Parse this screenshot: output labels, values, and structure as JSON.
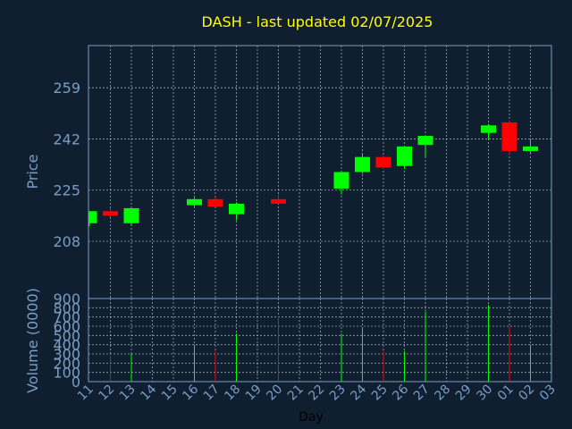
{
  "chart_data": {
    "type": "candlestick",
    "title": "DASH - last updated 02/07/2025",
    "xlabel": "Day",
    "price_panel": {
      "ylabel": "Price",
      "ylim": [
        189,
        273
      ],
      "yticks": [
        208,
        225,
        242,
        259
      ],
      "grid": true
    },
    "volume_panel": {
      "ylabel": "Volume (0000)",
      "ylim": [
        0,
        900
      ],
      "yticks": [
        0,
        100,
        200,
        300,
        400,
        500,
        600,
        700,
        800,
        900
      ],
      "grid": true
    },
    "x_tick_labels": [
      "11",
      "12",
      "13",
      "14",
      "15",
      "16",
      "17",
      "18",
      "19",
      "20",
      "21",
      "22",
      "23",
      "24",
      "25",
      "26",
      "27",
      "28",
      "29",
      "30",
      "01",
      "02",
      "03"
    ],
    "candles": [
      {
        "day": "11",
        "open": 214,
        "high": 218,
        "low": 213,
        "close": 218
      },
      {
        "day": "12",
        "open": 218,
        "high": 219,
        "low": 216,
        "close": 216.5
      },
      {
        "day": "13",
        "open": 214,
        "high": 219,
        "low": 213,
        "close": 219
      },
      {
        "day": "16",
        "open": 220,
        "high": 222.5,
        "low": 219.5,
        "close": 222
      },
      {
        "day": "17",
        "open": 222,
        "high": 222.5,
        "low": 219.5,
        "close": 219.5
      },
      {
        "day": "18",
        "open": 217,
        "high": 221,
        "low": 215,
        "close": 220.5
      },
      {
        "day": "20",
        "open": 222,
        "high": 223.5,
        "low": 220.5,
        "close": 220.5
      },
      {
        "day": "23",
        "open": 225.5,
        "high": 231.5,
        "low": 223.5,
        "close": 231
      },
      {
        "day": "24",
        "open": 231,
        "high": 237,
        "low": 230.5,
        "close": 236
      },
      {
        "day": "25",
        "open": 236,
        "high": 236.5,
        "low": 232,
        "close": 232.5
      },
      {
        "day": "26",
        "open": 233,
        "high": 239.5,
        "low": 232,
        "close": 239.5
      },
      {
        "day": "27",
        "open": 240,
        "high": 243,
        "low": 236,
        "close": 243
      },
      {
        "day": "30",
        "open": 244,
        "high": 247,
        "low": 242,
        "close": 246.5
      },
      {
        "day": "01",
        "open": 247.5,
        "high": 248,
        "low": 237,
        "close": 238
      },
      {
        "day": "02",
        "open": 238,
        "high": 242,
        "low": 237,
        "close": 239.5
      }
    ],
    "volumes": [
      {
        "day": "11",
        "value": 0,
        "direction": "up"
      },
      {
        "day": "12",
        "value": 280,
        "direction": "down"
      },
      {
        "day": "13",
        "value": 310,
        "direction": "up"
      },
      {
        "day": "16",
        "value": 400,
        "direction": "up"
      },
      {
        "day": "17",
        "value": 330,
        "direction": "down"
      },
      {
        "day": "18",
        "value": 520,
        "direction": "up"
      },
      {
        "day": "20",
        "value": 710,
        "direction": "down"
      },
      {
        "day": "23",
        "value": 520,
        "direction": "up"
      },
      {
        "day": "24",
        "value": 580,
        "direction": "up"
      },
      {
        "day": "25",
        "value": 330,
        "direction": "down"
      },
      {
        "day": "26",
        "value": 330,
        "direction": "up"
      },
      {
        "day": "27",
        "value": 760,
        "direction": "up"
      },
      {
        "day": "30",
        "value": 830,
        "direction": "up"
      },
      {
        "day": "01",
        "value": 600,
        "direction": "down"
      },
      {
        "day": "02",
        "value": 400,
        "direction": "up"
      }
    ],
    "colors": {
      "background": "#0f1f30",
      "up": "#00ff00",
      "down": "#ff0000",
      "title": "#ffff00",
      "axis_text": "#7a9cc6",
      "grid": "#c8d0dc"
    }
  }
}
